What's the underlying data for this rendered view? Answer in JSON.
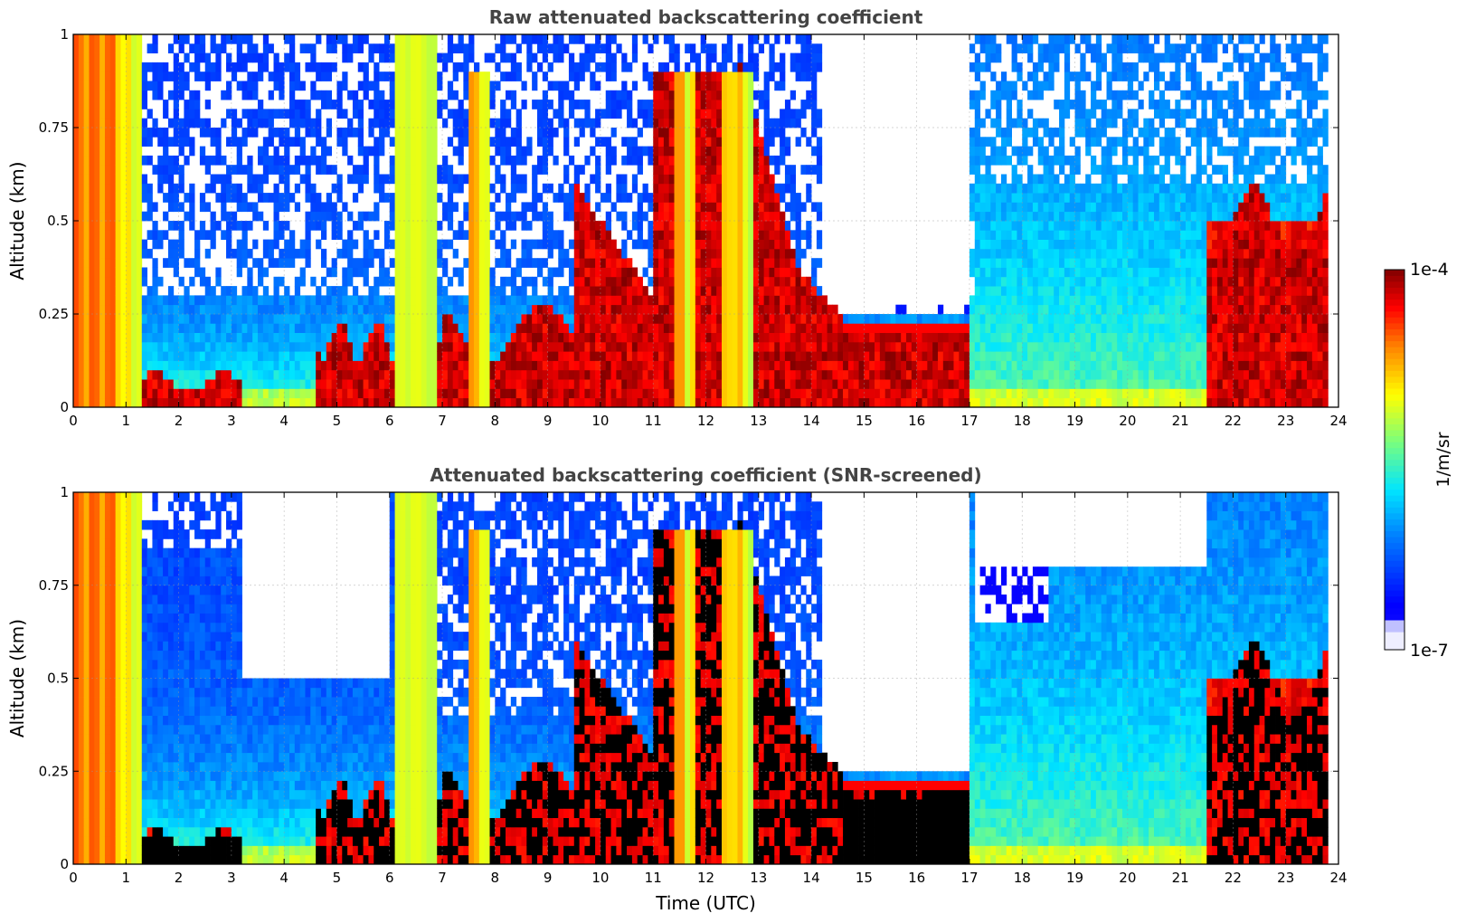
{
  "chart_data": [
    {
      "type": "heatmap",
      "title": "Raw attenuated backscattering coefficient",
      "ylabel": "Altitude (km)",
      "xlabel": "",
      "xlim": [
        0,
        24
      ],
      "ylim": [
        0,
        1
      ],
      "x_ticks": [
        0,
        1,
        2,
        3,
        4,
        5,
        6,
        7,
        8,
        9,
        10,
        11,
        12,
        13,
        14,
        15,
        16,
        17,
        18,
        19,
        20,
        21,
        22,
        23,
        24
      ],
      "y_ticks": [
        0,
        0.25,
        0.5,
        0.75,
        1
      ],
      "y_tick_labels": [
        "0",
        "0.25",
        "0.5",
        "0.75",
        "1"
      ],
      "grid": true,
      "screened": false
    },
    {
      "type": "heatmap",
      "title": "Attenuated backscattering coefficient (SNR-screened)",
      "ylabel": "Altitude (km)",
      "xlabel": "Time (UTC)",
      "xlim": [
        0,
        24
      ],
      "ylim": [
        0,
        1
      ],
      "x_ticks": [
        0,
        1,
        2,
        3,
        4,
        5,
        6,
        7,
        8,
        9,
        10,
        11,
        12,
        13,
        14,
        15,
        16,
        17,
        18,
        19,
        20,
        21,
        22,
        23,
        24
      ],
      "y_ticks": [
        0,
        0.25,
        0.5,
        0.75,
        1
      ],
      "y_tick_labels": [
        "0",
        "0.25",
        "0.5",
        "0.75",
        "1"
      ],
      "grid": true,
      "screened": true
    }
  ],
  "colorbar": {
    "label": "1/m/sr",
    "max_label": "1e-4",
    "min_label": "1e-7",
    "scale": "log",
    "range": [
      1e-07,
      0.0001
    ],
    "colormap": "jet"
  }
}
